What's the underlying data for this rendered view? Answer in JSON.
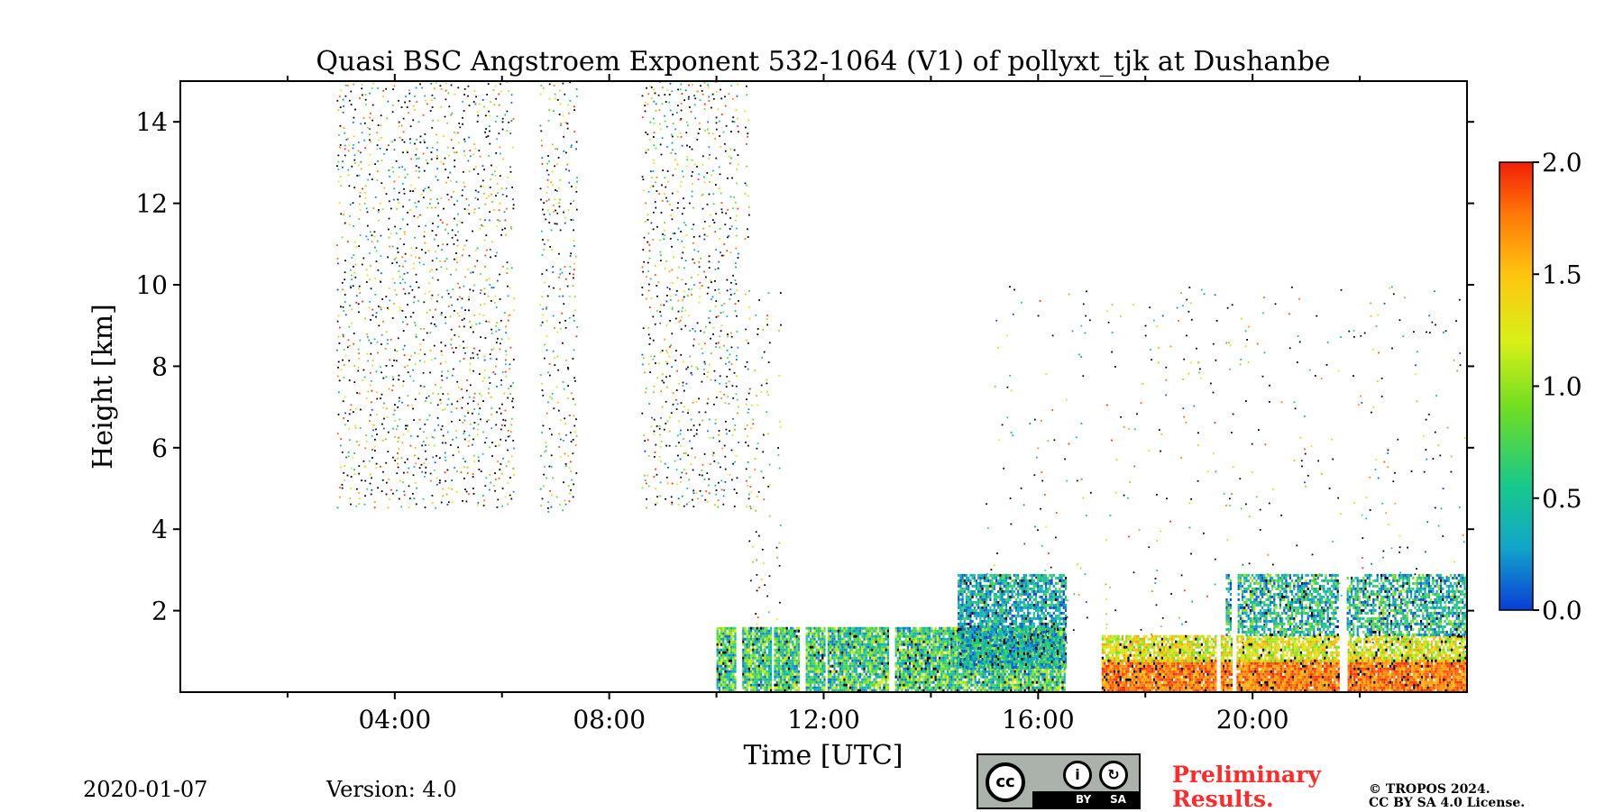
{
  "chart_data": {
    "type": "heatmap",
    "title": "Quasi BSC Angstroem Exponent 532-1064 (V1) of pollyxt_tjk at Dushanbe",
    "xlabel": "Time [UTC]",
    "ylabel": "Height [km]",
    "xlim_hours": [
      0,
      24
    ],
    "ylim_km": [
      0,
      15
    ],
    "x_ticks": [
      {
        "hour": 4,
        "label": "04:00"
      },
      {
        "hour": 8,
        "label": "08:00"
      },
      {
        "hour": 12,
        "label": "12:00"
      },
      {
        "hour": 16,
        "label": "16:00"
      },
      {
        "hour": 20,
        "label": "20:00"
      }
    ],
    "x_minor_ticks_hours": [
      2,
      6,
      10,
      14,
      18,
      22
    ],
    "y_ticks": [
      {
        "value": 2,
        "label": "2"
      },
      {
        "value": 4,
        "label": "4"
      },
      {
        "value": 6,
        "label": "6"
      },
      {
        "value": 8,
        "label": "8"
      },
      {
        "value": 10,
        "label": "10"
      },
      {
        "value": 12,
        "label": "12"
      },
      {
        "value": 14,
        "label": "14"
      }
    ],
    "colorbar": {
      "range": [
        0.0,
        2.0
      ],
      "ticks": [
        {
          "value": 0.0,
          "label": "0.0"
        },
        {
          "value": 0.5,
          "label": "0.5"
        },
        {
          "value": 1.0,
          "label": "1.0"
        },
        {
          "value": 1.5,
          "label": "1.5"
        },
        {
          "value": 2.0,
          "label": "2.0"
        }
      ],
      "colors": [
        "#0a3dd6",
        "#12a6c9",
        "#17c98a",
        "#6fdd22",
        "#d8f018",
        "#ffc410",
        "#ff7a08",
        "#f21f08"
      ]
    },
    "regions": [
      {
        "name": "sparse upper noise 03:00-06:15",
        "t": [
          2.9,
          6.2
        ],
        "h": [
          4.6,
          15
        ],
        "value_range": [
          0.0,
          2.0
        ],
        "density": 0.55
      },
      {
        "name": "sparse upper noise 06:45-07:30",
        "t": [
          6.7,
          7.4
        ],
        "h": [
          4.4,
          15
        ],
        "value_range": [
          0.0,
          2.0
        ],
        "density": 0.5
      },
      {
        "name": "sparse upper noise 08:40-10:30",
        "t": [
          8.6,
          10.6
        ],
        "h": [
          4.6,
          15
        ],
        "value_range": [
          0.0,
          2.0
        ],
        "density": 0.55
      },
      {
        "name": "noise column 11:00",
        "t": [
          10.6,
          11.2
        ],
        "h": [
          1.5,
          10
        ],
        "value_range": [
          0.5,
          2.0
        ],
        "density": 0.3
      },
      {
        "name": "evening noise plumes",
        "t": [
          15.0,
          24.0
        ],
        "h": [
          1.0,
          10
        ],
        "value_range": [
          0.0,
          2.0
        ],
        "density": 0.08
      },
      {
        "name": "boundary layer low values",
        "t": [
          10.0,
          16.5
        ],
        "h": [
          0.0,
          1.6
        ],
        "value_range": [
          0.1,
          1.2
        ],
        "density": 0.9
      },
      {
        "name": "aerosol layer 16:00",
        "t": [
          14.5,
          16.5
        ],
        "h": [
          0.6,
          2.9
        ],
        "value_range": [
          0.0,
          0.8
        ],
        "density": 0.75
      },
      {
        "name": "evening boundary layer",
        "t": [
          17.0,
          24.0
        ],
        "h": [
          0.0,
          0.8
        ],
        "value_range": [
          1.4,
          2.0
        ],
        "density": 0.95
      },
      {
        "name": "evening mid layer",
        "t": [
          17.0,
          24.0
        ],
        "h": [
          0.8,
          1.4
        ],
        "value_range": [
          0.8,
          1.6
        ],
        "density": 0.8
      },
      {
        "name": "evening upper aerosol layer",
        "t": [
          19.5,
          24.0
        ],
        "h": [
          1.4,
          2.9
        ],
        "value_range": [
          0.0,
          1.0
        ],
        "density": 0.65
      }
    ],
    "gaps_hours": [
      [
        10.35,
        10.45
      ],
      [
        11.0,
        11.05
      ],
      [
        11.55,
        11.65
      ],
      [
        12.0,
        12.05
      ],
      [
        13.2,
        13.3
      ],
      [
        17.0,
        17.15
      ],
      [
        19.3,
        19.4
      ],
      [
        19.6,
        19.7
      ],
      [
        21.6,
        21.75
      ]
    ]
  },
  "footer": {
    "date": "2020-01-07",
    "version": "Version: 4.0",
    "preliminary_line1": "Preliminary",
    "preliminary_line2": "Results.",
    "copyright_line1": "© TROPOS 2024.",
    "copyright_line2": "CC BY SA 4.0 License.",
    "license_badge": {
      "cc": "cc",
      "by": "BY",
      "sa": "SA"
    }
  }
}
